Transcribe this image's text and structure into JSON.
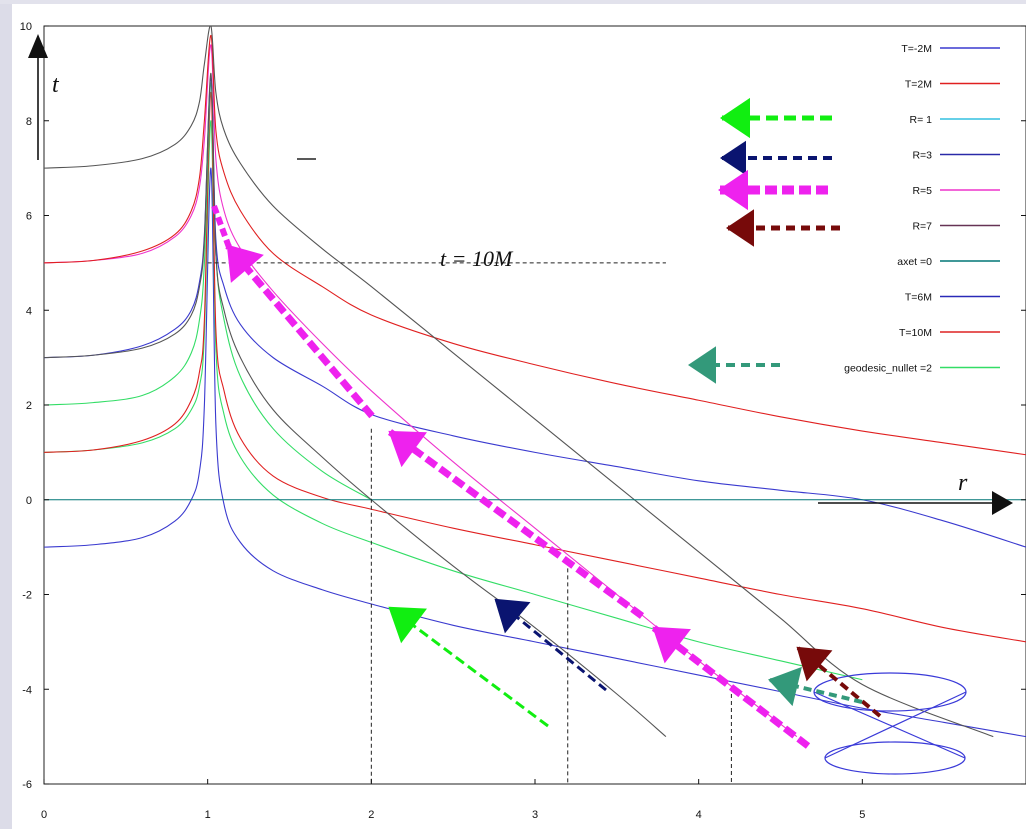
{
  "chart_data": {
    "type": "line",
    "title": "",
    "xlabel": "r",
    "ylabel": "t",
    "xlim": [
      0,
      6
    ],
    "ylim": [
      -6,
      10
    ],
    "x_ticks": [
      "0",
      "1",
      "2",
      "3",
      "4",
      "5"
    ],
    "y_ticks": [
      "10",
      "8",
      "6",
      "4",
      "2",
      "0",
      "-2",
      "-4",
      "-6"
    ],
    "annotation": "t = 10M",
    "grid": false,
    "legend_position": "top-right",
    "legend": [
      {
        "label": "T=-2M",
        "color": "#3a3acf"
      },
      {
        "label": "T=2M",
        "color": "#e02020"
      },
      {
        "label": "R= 1",
        "color": "#33c0e0"
      },
      {
        "label": "R=3",
        "color": "#2a2aa8"
      },
      {
        "label": "R=5",
        "color": "#ee33cc"
      },
      {
        "label": "R=7",
        "color": "#663355"
      },
      {
        "label": "axet =0",
        "color": "#007777"
      },
      {
        "label": "T=6M",
        "color": "#2a2ab8"
      },
      {
        "label": "T=10M",
        "color": "#dd2222"
      },
      {
        "label": "geodesic_nullet =2",
        "color": "#33dd66"
      }
    ],
    "colors": {
      "green": "#33dd66",
      "red": "#e02020",
      "blue": "#3a3acf",
      "pink": "#ee33cc",
      "gray": "#555555",
      "teal": "#007777",
      "arrow_green": "#11ee11",
      "arrow_navy": "#0a1470",
      "arrow_magenta": "#ee22ee",
      "arrow_maroon": "#770a0a",
      "arrow_seagreen": "#33997a"
    },
    "series": [
      {
        "color": "#3a3acf",
        "x": [
          0,
          0.3,
          0.6,
          0.8,
          0.9,
          0.95,
          0.98,
          1.02,
          1.05,
          1.1,
          1.2,
          1.4,
          1.7,
          2,
          2.5,
          3,
          3.5,
          4,
          4.5,
          5,
          5.5,
          6
        ],
        "y": [
          -1,
          -0.95,
          -0.8,
          -0.45,
          0,
          0.6,
          2,
          7,
          1.6,
          -0.1,
          -0.9,
          -1.5,
          -1.9,
          -2.2,
          -2.65,
          -3,
          -3.35,
          -3.7,
          -4.05,
          -4.4,
          -4.7,
          -5
        ]
      },
      {
        "color": "#33dd66",
        "x": [
          0,
          0.3,
          0.6,
          0.8,
          0.9,
          0.95,
          0.98,
          1.02,
          1.05,
          1.1,
          1.2,
          1.4,
          1.7,
          2,
          2.5,
          3,
          3.5,
          4,
          4.5,
          5
        ],
        "y": [
          1,
          1.05,
          1.2,
          1.5,
          1.9,
          2.4,
          3.5,
          8,
          3.2,
          1.8,
          0.9,
          0.1,
          -0.5,
          -0.9,
          -1.5,
          -2,
          -2.5,
          -3,
          -3.4,
          -3.8
        ]
      },
      {
        "color": "#e02020",
        "x": [
          0,
          0.3,
          0.6,
          0.8,
          0.9,
          0.95,
          0.98,
          1.02,
          1.05,
          1.1,
          1.2,
          1.4,
          1.7,
          2,
          2.5,
          3,
          3.5,
          4,
          4.5,
          5,
          5.5,
          6
        ],
        "y": [
          1,
          1.05,
          1.25,
          1.6,
          2.1,
          2.7,
          3.8,
          8.6,
          3.6,
          2.3,
          1.3,
          0.5,
          0.05,
          -0.2,
          -0.6,
          -0.95,
          -1.3,
          -1.65,
          -2,
          -2.3,
          -2.7,
          -3
        ]
      },
      {
        "color": "#33dd66",
        "x": [
          0,
          0.3,
          0.6,
          0.8,
          0.9,
          0.95,
          0.98,
          1.02,
          1.05,
          1.1,
          1.2,
          1.4,
          1.7,
          2
        ],
        "y": [
          2,
          2.05,
          2.2,
          2.6,
          3.1,
          3.8,
          5,
          8.8,
          5.2,
          3.8,
          2.6,
          1.5,
          0.6,
          0
        ]
      },
      {
        "color": "#3a3acf",
        "x": [
          0,
          0.3,
          0.6,
          0.8,
          0.9,
          0.95,
          0.98,
          1.02,
          1.05,
          1.1,
          1.2,
          1.4,
          1.7,
          2,
          2.5,
          3,
          3.5,
          4,
          4.5,
          5,
          5.5,
          6
        ],
        "y": [
          3,
          3.05,
          3.25,
          3.6,
          4,
          4.6,
          5.6,
          8.9,
          5.5,
          4.5,
          3.7,
          3,
          2.4,
          1.8,
          1.35,
          1,
          0.7,
          0.4,
          0.2,
          0,
          -0.45,
          -1
        ]
      },
      {
        "color": "#555555",
        "x": [
          0,
          0.3,
          0.6,
          0.8,
          0.9,
          0.95,
          0.98,
          1.02,
          1.05,
          1.1,
          1.2,
          1.4,
          1.7,
          2,
          2.5,
          3,
          3.5,
          3.8
        ],
        "y": [
          3,
          3.05,
          3.2,
          3.5,
          3.9,
          4.5,
          5.5,
          9,
          5.2,
          4,
          3,
          1.9,
          0.9,
          0,
          -1.4,
          -2.7,
          -4.1,
          -5
        ]
      },
      {
        "color": "#ee33cc",
        "x": [
          0,
          0.3,
          0.6,
          0.8,
          0.9,
          0.95,
          0.98,
          1.02,
          1.05,
          1.1,
          1.2,
          1.4,
          1.7,
          2,
          2.5,
          3,
          3.5,
          4,
          4.6
        ],
        "y": [
          5,
          5.05,
          5.2,
          5.55,
          6,
          6.6,
          7.6,
          9.6,
          7.2,
          6.1,
          5.3,
          4.4,
          3.3,
          2.3,
          0.8,
          -0.6,
          -2,
          -3.4,
          -5
        ]
      },
      {
        "color": "#e02020",
        "x": [
          0,
          0.3,
          0.6,
          0.8,
          0.9,
          0.95,
          0.98,
          1.02,
          1.05,
          1.1,
          1.2,
          1.4,
          1.7,
          2,
          2.5,
          3,
          3.5,
          4,
          4.5,
          5,
          5.5,
          6
        ],
        "y": [
          5,
          5.05,
          5.25,
          5.6,
          6.1,
          6.8,
          8,
          9.8,
          7.8,
          6.9,
          6.1,
          5.2,
          4.5,
          3.9,
          3.3,
          2.85,
          2.45,
          2.1,
          1.75,
          1.45,
          1.2,
          0.95
        ]
      },
      {
        "color": "#555555",
        "x": [
          0,
          0.3,
          0.6,
          0.8,
          0.9,
          0.95,
          0.98,
          1.02,
          1.05,
          1.1,
          1.2,
          1.4,
          1.7,
          2,
          2.5,
          3,
          3.5,
          4,
          4.5,
          5,
          5.8
        ],
        "y": [
          7,
          7.05,
          7.2,
          7.5,
          7.9,
          8.4,
          9.2,
          10,
          8.6,
          7.8,
          7.1,
          6.2,
          5.3,
          4.5,
          3.1,
          1.7,
          0.3,
          -1.1,
          -2.5,
          -3.9,
          -5
        ]
      }
    ],
    "teal_axis_y": 0
  }
}
